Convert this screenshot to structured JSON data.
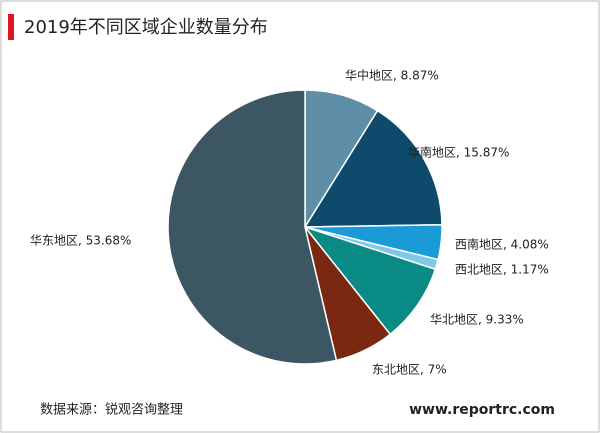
{
  "chart_data": {
    "type": "pie",
    "title": "2019年不同区域企业数量分布",
    "values": [
      8.87,
      15.87,
      4.08,
      1.17,
      9.33,
      7,
      53.68
    ],
    "value_labels": [
      "华中地区, 8.87%",
      "华南地区, 15.87%",
      "西南地区, 4.08%",
      "西北地区, 1.17%",
      "华北地区, 9.33%",
      "东北地区, 7%",
      "华东地区, 53.68%"
    ],
    "colors": [
      "#5f8fa6",
      "#0d4a6b",
      "#1a9bd7",
      "#7fc8e8",
      "#0a8a84",
      "#7a2812",
      "#3d5664"
    ],
    "source": "数据来源：锐观咨询整理",
    "website": "www.reportrc.com"
  }
}
